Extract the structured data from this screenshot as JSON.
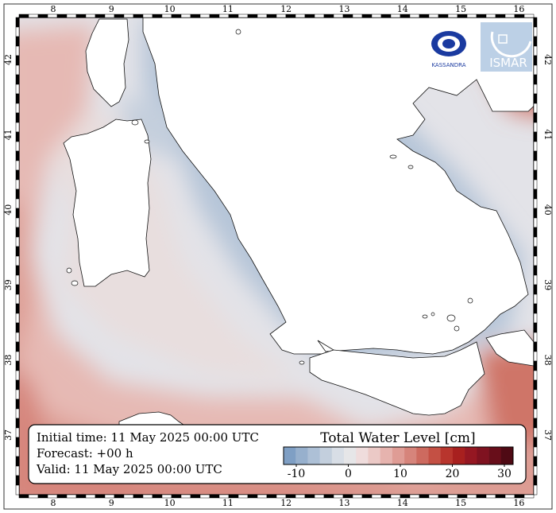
{
  "map": {
    "lon_ticks": [
      "8",
      "9",
      "10",
      "11",
      "12",
      "13",
      "14",
      "15",
      "16"
    ],
    "lat_ticks": [
      "42",
      "41",
      "40",
      "39",
      "38",
      "37"
    ]
  },
  "info": {
    "initial_time": "Initial time: 11 May 2025 00:00 UTC",
    "forecast": "Forecast: +00 h",
    "valid": "Valid: 11 May 2025 00:00 UTC"
  },
  "colorbar": {
    "title": "Total Water Level [cm]",
    "ticks": [
      "-10",
      "0",
      "10",
      "20",
      "30"
    ],
    "colors": [
      "#7f9fc4",
      "#97b0cd",
      "#adc0d6",
      "#c3cfdd",
      "#d8dee6",
      "#e6e6e8",
      "#efdcdc",
      "#ebc9c6",
      "#e6b3ae",
      "#df9c95",
      "#d6847b",
      "#cd6a5f",
      "#c45044",
      "#b8352d",
      "#a8201f",
      "#951722",
      "#7f1220",
      "#680e1a",
      "#4f0a14"
    ]
  },
  "logos": {
    "left": "KASSANDRA",
    "right": "ISMAR"
  }
}
